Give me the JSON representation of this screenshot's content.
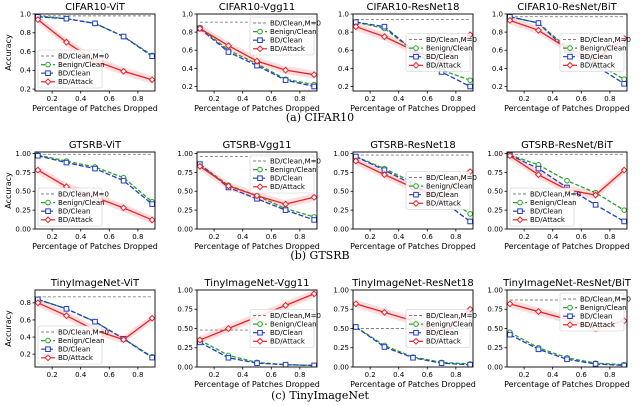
{
  "colors": {
    "bd_clean_m0": "#808080",
    "benign_clean": "#2ca02c",
    "bd_clean": "#1f3fbf",
    "bd_attack": "#e8232a"
  },
  "series_names": [
    "BD/Clean,M=0",
    "Benign/Clean",
    "BD/Clean",
    "BD/Attack"
  ],
  "groups": [
    {
      "caption": "(a) CIFAR10",
      "dataset": "CIFAR10"
    },
    {
      "caption": "(b) GTSRB",
      "dataset": "GTSRB"
    },
    {
      "caption": "(c) TinyImageNet",
      "dataset": "TinyImageNet"
    }
  ],
  "chart_data": [
    {
      "type": "line",
      "title": "CIFAR10-ViT",
      "xlabel": "Percentage of Patches Dropped",
      "ylabel": "Accuracy",
      "xlim": [
        0.08,
        0.92
      ],
      "ylim": [
        0.18,
        1.0
      ],
      "xticks": [
        0.2,
        0.4,
        0.6,
        0.8
      ],
      "xtick_labels": [
        "0.2",
        "0.4",
        "0.6",
        "0.8"
      ],
      "yticks": [
        0.2,
        0.4,
        0.6,
        0.8,
        1.0
      ],
      "ytick_labels": [
        "0.2",
        "0.4",
        "0.6",
        "0.8",
        "1.0"
      ],
      "legend": "lower-left",
      "x": [
        0.1,
        0.3,
        0.5,
        0.7,
        0.9
      ],
      "series": [
        {
          "name": "BD/Clean,M=0",
          "values": [
            0.98,
            0.98,
            0.98,
            0.98,
            0.98
          ]
        },
        {
          "name": "Benign/Clean",
          "values": [
            0.98,
            0.95,
            0.9,
            0.76,
            0.56
          ]
        },
        {
          "name": "BD/Clean",
          "values": [
            0.97,
            0.95,
            0.9,
            0.76,
            0.55
          ]
        },
        {
          "name": "BD/Attack",
          "values": [
            0.94,
            0.7,
            0.5,
            0.39,
            0.3
          ]
        }
      ]
    },
    {
      "type": "line",
      "title": "CIFAR10-Vgg11",
      "xlabel": "Percentage of Patches Dropped",
      "ylabel": "",
      "xlim": [
        0.08,
        0.92
      ],
      "ylim": [
        0.15,
        1.0
      ],
      "xticks": [
        0.2,
        0.4,
        0.6,
        0.8
      ],
      "xtick_labels": [
        "0.2",
        "0.4",
        "0.6",
        "0.8"
      ],
      "yticks": [
        0.2,
        0.4,
        0.6,
        0.8,
        1.0
      ],
      "ytick_labels": [
        "0.2",
        "0.4",
        "0.6",
        "0.8",
        "1.0"
      ],
      "legend": "upper-right",
      "x": [
        0.1,
        0.3,
        0.5,
        0.7,
        0.9
      ],
      "series": [
        {
          "name": "BD/Clean,M=0",
          "values": [
            0.91,
            0.91,
            0.91,
            0.91,
            0.91
          ]
        },
        {
          "name": "Benign/Clean",
          "values": [
            0.85,
            0.6,
            0.45,
            0.28,
            0.22
          ]
        },
        {
          "name": "BD/Clean",
          "values": [
            0.84,
            0.58,
            0.43,
            0.27,
            0.2
          ]
        },
        {
          "name": "BD/Attack",
          "values": [
            0.84,
            0.65,
            0.48,
            0.38,
            0.33
          ]
        }
      ]
    },
    {
      "type": "line",
      "title": "CIFAR10-ResNet18",
      "xlabel": "Percentage of Patches Dropped",
      "ylabel": "",
      "xlim": [
        0.08,
        0.92
      ],
      "ylim": [
        0.15,
        1.0
      ],
      "xticks": [
        0.2,
        0.4,
        0.6,
        0.8
      ],
      "xtick_labels": [
        "0.2",
        "0.4",
        "0.6",
        "0.8"
      ],
      "yticks": [
        0.2,
        0.4,
        0.6,
        0.8,
        1.0
      ],
      "ytick_labels": [
        "0.2",
        "0.4",
        "0.6",
        "0.8",
        "1.0"
      ],
      "legend": "center-right",
      "x": [
        0.1,
        0.3,
        0.5,
        0.7,
        0.9
      ],
      "series": [
        {
          "name": "BD/Clean,M=0",
          "values": [
            0.94,
            0.94,
            0.94,
            0.94,
            0.94
          ]
        },
        {
          "name": "Benign/Clean",
          "values": [
            0.91,
            0.84,
            0.6,
            0.38,
            0.27
          ]
        },
        {
          "name": "BD/Clean",
          "values": [
            0.91,
            0.86,
            0.6,
            0.36,
            0.2
          ]
        },
        {
          "name": "BD/Attack",
          "values": [
            0.86,
            0.75,
            0.6,
            0.47,
            0.77
          ]
        }
      ]
    },
    {
      "type": "line",
      "title": "CIFAR10-ResNet/BiT",
      "xlabel": "Percentage of Patches Dropped",
      "ylabel": "",
      "xlim": [
        0.08,
        0.92
      ],
      "ylim": [
        0.15,
        1.0
      ],
      "xticks": [
        0.2,
        0.4,
        0.6,
        0.8
      ],
      "xtick_labels": [
        "0.2",
        "0.4",
        "0.6",
        "0.8"
      ],
      "yticks": [
        0.2,
        0.4,
        0.6,
        0.8,
        1.0
      ],
      "ytick_labels": [
        "0.2",
        "0.4",
        "0.6",
        "0.8",
        "1.0"
      ],
      "legend": "center-right",
      "x": [
        0.1,
        0.3,
        0.5,
        0.7,
        0.9
      ],
      "series": [
        {
          "name": "BD/Clean,M=0",
          "values": [
            0.97,
            0.97,
            0.97,
            0.97,
            0.97
          ]
        },
        {
          "name": "Benign/Clean",
          "values": [
            0.97,
            0.9,
            0.63,
            0.46,
            0.28
          ]
        },
        {
          "name": "BD/Clean",
          "values": [
            0.97,
            0.9,
            0.6,
            0.43,
            0.23
          ]
        },
        {
          "name": "BD/Attack",
          "values": [
            0.93,
            0.82,
            0.62,
            0.5,
            0.73
          ]
        }
      ]
    },
    {
      "type": "line",
      "title": "GTSRB-ViT",
      "xlabel": "Percentage of Patches Dropped",
      "ylabel": "Accuracy",
      "xlim": [
        0.08,
        0.92
      ],
      "ylim": [
        0.0,
        1.02
      ],
      "xticks": [
        0.2,
        0.4,
        0.6,
        0.8
      ],
      "xtick_labels": [
        "0.2",
        "0.4",
        "0.6",
        "0.8"
      ],
      "yticks": [
        0.0,
        0.25,
        0.5,
        0.75,
        1.0
      ],
      "ytick_labels": [
        "0.00",
        "0.25",
        "0.50",
        "0.75",
        "1.00"
      ],
      "legend": "lower-left",
      "x": [
        0.1,
        0.3,
        0.5,
        0.7,
        0.9
      ],
      "series": [
        {
          "name": "BD/Clean,M=0",
          "values": [
            0.99,
            0.99,
            0.99,
            0.99,
            0.99
          ]
        },
        {
          "name": "Benign/Clean",
          "values": [
            0.98,
            0.9,
            0.82,
            0.68,
            0.36
          ]
        },
        {
          "name": "BD/Clean",
          "values": [
            0.97,
            0.88,
            0.8,
            0.64,
            0.33
          ]
        },
        {
          "name": "BD/Attack",
          "values": [
            0.78,
            0.56,
            0.42,
            0.28,
            0.12
          ]
        }
      ]
    },
    {
      "type": "line",
      "title": "GTSRB-Vgg11",
      "xlabel": "Percentage of Patches Dropped",
      "ylabel": "",
      "xlim": [
        0.08,
        0.92
      ],
      "ylim": [
        0.0,
        1.02
      ],
      "xticks": [
        0.2,
        0.4,
        0.6,
        0.8
      ],
      "xtick_labels": [
        "0.2",
        "0.4",
        "0.6",
        "0.8"
      ],
      "yticks": [
        0.0,
        0.25,
        0.5,
        0.75,
        1.0
      ],
      "ytick_labels": [
        "0.00",
        "0.25",
        "0.50",
        "0.75",
        "1.00"
      ],
      "legend": "upper-right",
      "x": [
        0.1,
        0.3,
        0.5,
        0.7,
        0.9
      ],
      "series": [
        {
          "name": "BD/Clean,M=0",
          "values": [
            0.96,
            0.96,
            0.96,
            0.96,
            0.96
          ]
        },
        {
          "name": "Benign/Clean",
          "values": [
            0.85,
            0.58,
            0.44,
            0.27,
            0.16
          ]
        },
        {
          "name": "BD/Clean",
          "values": [
            0.86,
            0.55,
            0.4,
            0.25,
            0.12
          ]
        },
        {
          "name": "BD/Attack",
          "values": [
            0.83,
            0.57,
            0.44,
            0.33,
            0.42
          ]
        }
      ]
    },
    {
      "type": "line",
      "title": "GTSRB-ResNet18",
      "xlabel": "Percentage of Patches Dropped",
      "ylabel": "",
      "xlim": [
        0.08,
        0.92
      ],
      "ylim": [
        0.0,
        1.02
      ],
      "xticks": [
        0.2,
        0.4,
        0.6,
        0.8
      ],
      "xtick_labels": [
        "0.2",
        "0.4",
        "0.6",
        "0.8"
      ],
      "yticks": [
        0.0,
        0.25,
        0.5,
        0.75,
        1.0
      ],
      "ytick_labels": [
        "0.00",
        "0.25",
        "0.50",
        "0.75",
        "1.00"
      ],
      "legend": "center-right",
      "x": [
        0.1,
        0.3,
        0.5,
        0.7,
        0.9
      ],
      "series": [
        {
          "name": "BD/Clean,M=0",
          "values": [
            0.98,
            0.98,
            0.98,
            0.98,
            0.98
          ]
        },
        {
          "name": "Benign/Clean",
          "values": [
            0.96,
            0.8,
            0.62,
            0.45,
            0.2
          ]
        },
        {
          "name": "BD/Clean",
          "values": [
            0.96,
            0.78,
            0.59,
            0.38,
            0.1
          ]
        },
        {
          "name": "BD/Attack",
          "values": [
            0.9,
            0.72,
            0.55,
            0.42,
            0.76
          ]
        }
      ]
    },
    {
      "type": "line",
      "title": "GTSRB-ResNet/BiT",
      "xlabel": "Percentage of Patches Dropped",
      "ylabel": "",
      "xlim": [
        0.08,
        0.92
      ],
      "ylim": [
        0.0,
        1.02
      ],
      "xticks": [
        0.2,
        0.4,
        0.6,
        0.8
      ],
      "xtick_labels": [
        "0.2",
        "0.4",
        "0.6",
        "0.8"
      ],
      "yticks": [
        0.0,
        0.25,
        0.5,
        0.75,
        1.0
      ],
      "ytick_labels": [
        "0.00",
        "0.25",
        "0.50",
        "0.75",
        "1.00"
      ],
      "legend": "lower-left",
      "x": [
        0.1,
        0.3,
        0.5,
        0.7,
        0.9
      ],
      "series": [
        {
          "name": "BD/Clean,M=0",
          "values": [
            0.99,
            0.99,
            0.99,
            0.99,
            0.99
          ]
        },
        {
          "name": "Benign/Clean",
          "values": [
            0.98,
            0.85,
            0.64,
            0.48,
            0.25
          ]
        },
        {
          "name": "BD/Clean",
          "values": [
            0.98,
            0.8,
            0.55,
            0.32,
            0.1
          ]
        },
        {
          "name": "BD/Attack",
          "values": [
            0.97,
            0.72,
            0.52,
            0.45,
            0.78
          ]
        }
      ]
    },
    {
      "type": "line",
      "title": "TinyImageNet-ViT",
      "xlabel": "",
      "ylabel": "Accuracy",
      "xlim": [
        0.08,
        0.92
      ],
      "ylim": [
        0.05,
        0.95
      ],
      "xticks": [
        0.2,
        0.4,
        0.6,
        0.8
      ],
      "xtick_labels": [
        "0.2",
        "0.4",
        "0.6",
        "0.8"
      ],
      "yticks": [
        0.2,
        0.4,
        0.6,
        0.8
      ],
      "ytick_labels": [
        "0.2",
        "0.4",
        "0.6",
        "0.8"
      ],
      "legend": "lower-left",
      "x": [
        0.1,
        0.3,
        0.5,
        0.7,
        0.9
      ],
      "series": [
        {
          "name": "BD/Clean,M=0",
          "values": [
            0.87,
            0.87,
            0.87,
            0.87,
            0.87
          ]
        },
        {
          "name": "Benign/Clean",
          "values": [
            0.84,
            0.73,
            0.58,
            0.38,
            0.17
          ]
        },
        {
          "name": "BD/Clean",
          "values": [
            0.84,
            0.73,
            0.58,
            0.38,
            0.16
          ]
        },
        {
          "name": "BD/Attack",
          "values": [
            0.8,
            0.65,
            0.48,
            0.37,
            0.62
          ]
        }
      ]
    },
    {
      "type": "line",
      "title": "TinyImageNet-Vgg11",
      "xlabel": "Percentage of Patches Dropped",
      "ylabel": "",
      "xlim": [
        0.08,
        0.92
      ],
      "ylim": [
        0.0,
        1.0
      ],
      "xticks": [
        0.2,
        0.4,
        0.6,
        0.8
      ],
      "xtick_labels": [
        "0.2",
        "0.4",
        "0.6",
        "0.8"
      ],
      "yticks": [
        0.0,
        0.25,
        0.5,
        0.75,
        1.0
      ],
      "ytick_labels": [
        "0.00",
        "0.25",
        "0.50",
        "0.75",
        "1.00"
      ],
      "legend": "center-right",
      "x": [
        0.1,
        0.3,
        0.5,
        0.7,
        0.9
      ],
      "series": [
        {
          "name": "BD/Clean,M=0",
          "values": [
            0.48,
            0.48,
            0.48,
            0.48,
            0.48
          ]
        },
        {
          "name": "Benign/Clean",
          "values": [
            0.35,
            0.15,
            0.06,
            0.03,
            0.02
          ]
        },
        {
          "name": "BD/Clean",
          "values": [
            0.32,
            0.12,
            0.05,
            0.03,
            0.02
          ]
        },
        {
          "name": "BD/Attack",
          "values": [
            0.35,
            0.5,
            0.65,
            0.8,
            0.95
          ]
        }
      ]
    },
    {
      "type": "line",
      "title": "TinyImageNet-ResNet18",
      "xlabel": "Percentage of Patches Dropped",
      "ylabel": "",
      "xlim": [
        0.08,
        0.92
      ],
      "ylim": [
        0.0,
        1.0
      ],
      "xticks": [
        0.2,
        0.4,
        0.6,
        0.8
      ],
      "xtick_labels": [
        "0.2",
        "0.4",
        "0.6",
        "0.8"
      ],
      "yticks": [
        0.0,
        0.25,
        0.5,
        0.75,
        1.0
      ],
      "ytick_labels": [
        "0.00",
        "0.25",
        "0.50",
        "0.75",
        "1.00"
      ],
      "legend": "center-right",
      "x": [
        0.1,
        0.3,
        0.5,
        0.7,
        0.9
      ],
      "series": [
        {
          "name": "BD/Clean,M=0",
          "values": [
            0.5,
            0.5,
            0.5,
            0.5,
            0.5
          ]
        },
        {
          "name": "Benign/Clean",
          "values": [
            0.52,
            0.28,
            0.13,
            0.06,
            0.04
          ]
        },
        {
          "name": "BD/Clean",
          "values": [
            0.52,
            0.26,
            0.12,
            0.05,
            0.03
          ]
        },
        {
          "name": "BD/Attack",
          "values": [
            0.82,
            0.71,
            0.6,
            0.42,
            0.75
          ]
        }
      ]
    },
    {
      "type": "line",
      "title": "TinyImageNet-ResNet/BiT",
      "xlabel": "Percentage of Patches Dropped",
      "ylabel": "",
      "xlim": [
        0.08,
        0.92
      ],
      "ylim": [
        0.0,
        1.0
      ],
      "xticks": [
        0.2,
        0.4,
        0.6,
        0.8
      ],
      "xtick_labels": [
        "0.2",
        "0.4",
        "0.6",
        "0.8"
      ],
      "yticks": [
        0.0,
        0.25,
        0.5,
        0.75,
        1.0
      ],
      "ytick_labels": [
        "0.00",
        "0.25",
        "0.50",
        "0.75",
        "1.00"
      ],
      "legend": "upper-right",
      "x": [
        0.1,
        0.3,
        0.5,
        0.7,
        0.9
      ],
      "series": [
        {
          "name": "BD/Clean,M=0",
          "values": [
            0.87,
            0.87,
            0.87,
            0.87,
            0.87
          ]
        },
        {
          "name": "Benign/Clean",
          "values": [
            0.45,
            0.25,
            0.12,
            0.05,
            0.03
          ]
        },
        {
          "name": "BD/Clean",
          "values": [
            0.42,
            0.23,
            0.1,
            0.04,
            0.02
          ]
        },
        {
          "name": "BD/Attack",
          "values": [
            0.82,
            0.72,
            0.62,
            0.5,
            0.6
          ]
        }
      ]
    }
  ]
}
